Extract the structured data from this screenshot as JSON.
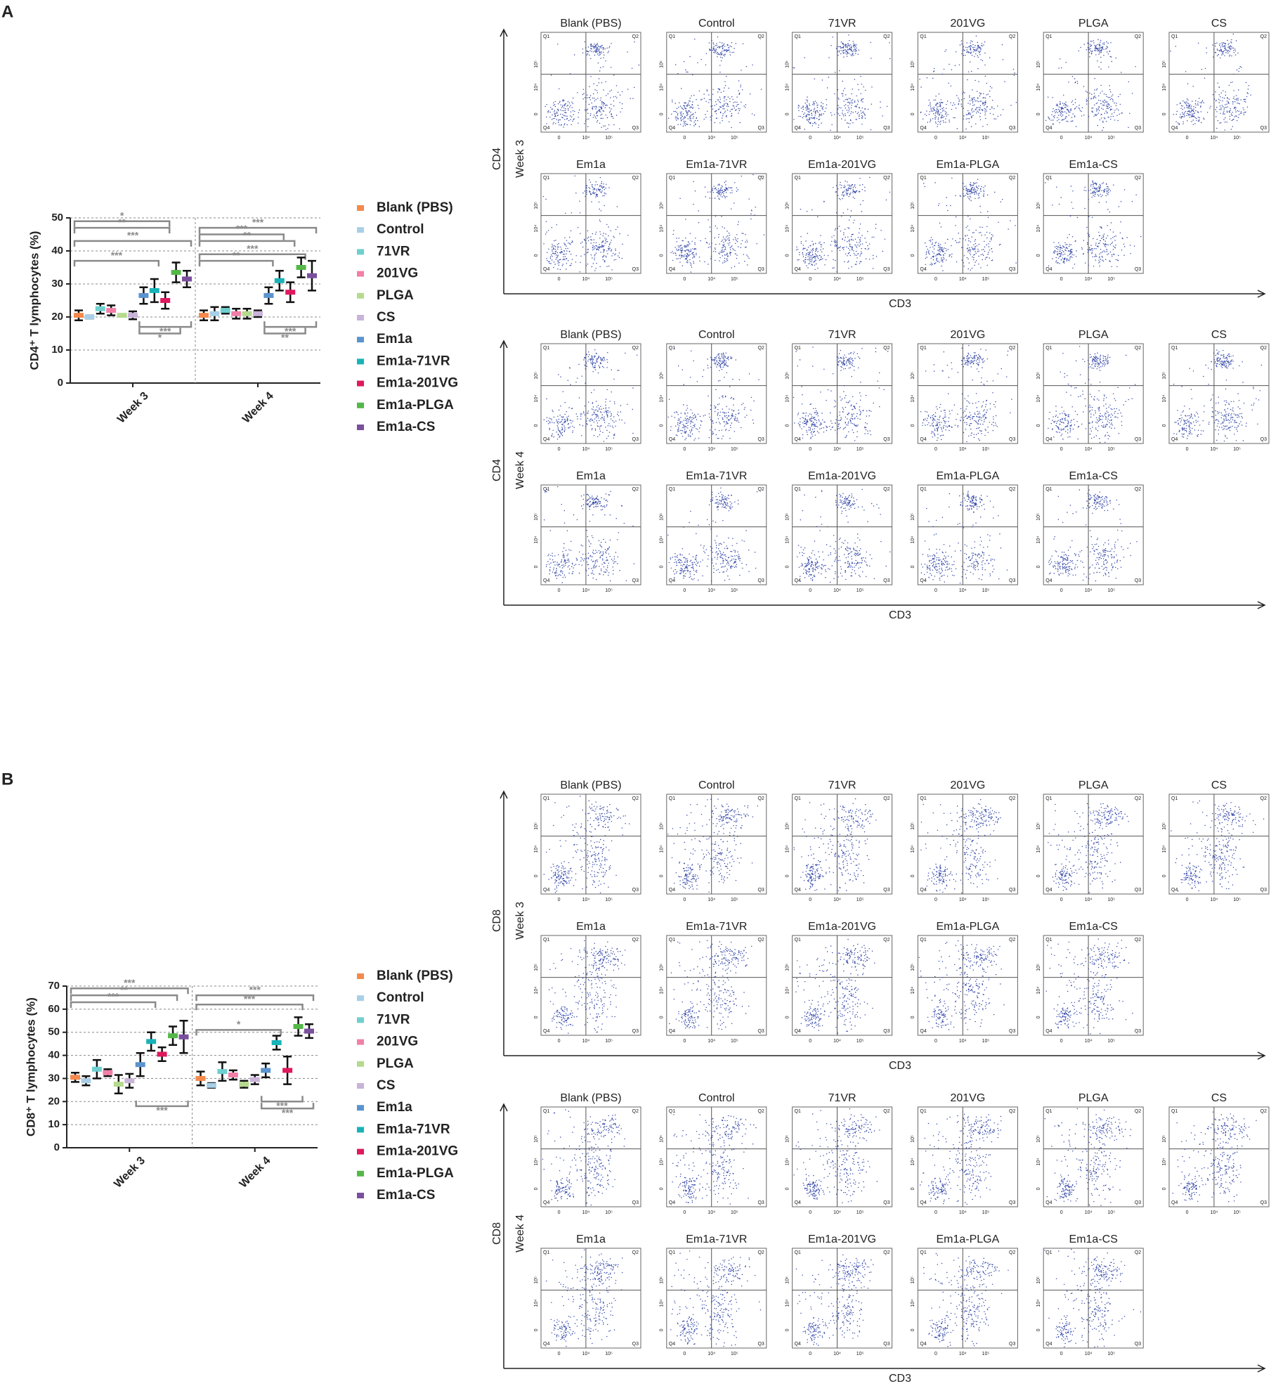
{
  "panel_labels": [
    "A",
    "B"
  ],
  "chart_data": [
    {
      "type": "errorbar",
      "y_label": "CD4⁺ T lymphocytes (%)",
      "categories": [
        "Week 3",
        "Week 4"
      ],
      "ylim": [
        0,
        50
      ],
      "yticks": [
        0,
        10,
        20,
        30,
        40,
        50
      ],
      "grid": true,
      "series": [
        {
          "name": "Blank (PBS)",
          "color": "#f4894b",
          "values": [
            20.5,
            20.5
          ],
          "errors": [
            1.5,
            1.5
          ]
        },
        {
          "name": "Control",
          "color": "#a9cfe8",
          "values": [
            20,
            21
          ],
          "errors": [
            0.5,
            2
          ]
        },
        {
          "name": "71VR",
          "color": "#6fcfcf",
          "values": [
            22.5,
            22
          ],
          "errors": [
            1.5,
            1
          ]
        },
        {
          "name": "201VG",
          "color": "#f27fa8",
          "values": [
            22,
            21
          ],
          "errors": [
            1.5,
            1.5
          ]
        },
        {
          "name": "PLGA",
          "color": "#b5da8e",
          "values": [
            20.5,
            21
          ],
          "errors": [
            0.3,
            1.5
          ]
        },
        {
          "name": "CS",
          "color": "#c9b3d9",
          "values": [
            20.5,
            21
          ],
          "errors": [
            1.2,
            1
          ]
        },
        {
          "name": "Em1a",
          "color": "#5b93cf",
          "values": [
            26.5,
            26.5
          ],
          "errors": [
            2.5,
            2.5
          ]
        },
        {
          "name": "Em1a-71VR",
          "color": "#18b3b8",
          "values": [
            28,
            31
          ],
          "errors": [
            3.5,
            3
          ]
        },
        {
          "name": "Em1a-201VG",
          "color": "#e0185e",
          "values": [
            25,
            27.5
          ],
          "errors": [
            2.5,
            3
          ]
        },
        {
          "name": "Em1a-PLGA",
          "color": "#53b848",
          "values": [
            33.5,
            35
          ],
          "errors": [
            3,
            3
          ]
        },
        {
          "name": "Em1a-CS",
          "color": "#7a4f9e",
          "values": [
            31.5,
            32.5
          ],
          "errors": [
            2.5,
            4.5
          ]
        }
      ],
      "annotations": [
        "*",
        "**",
        "***",
        "***",
        "***",
        "*",
        "***",
        "***",
        "**",
        "***",
        "**",
        "***",
        "**"
      ]
    },
    {
      "type": "errorbar",
      "y_label": "CD8⁺ T lymphocytes (%)",
      "categories": [
        "Week 3",
        "Week 4"
      ],
      "ylim": [
        0,
        70
      ],
      "yticks": [
        0,
        10,
        20,
        30,
        40,
        50,
        60,
        70
      ],
      "grid": true,
      "series": [
        {
          "name": "Blank (PBS)",
          "color": "#f4894b",
          "values": [
            30.5,
            30
          ],
          "errors": [
            2,
            3
          ]
        },
        {
          "name": "Control",
          "color": "#a9cfe8",
          "values": [
            29,
            27
          ],
          "errors": [
            2,
            1
          ]
        },
        {
          "name": "71VR",
          "color": "#6fcfcf",
          "values": [
            34,
            33
          ],
          "errors": [
            4,
            4
          ]
        },
        {
          "name": "201VG",
          "color": "#f27fa8",
          "values": [
            32.5,
            31.5
          ],
          "errors": [
            1.5,
            2
          ]
        },
        {
          "name": "PLGA",
          "color": "#b5da8e",
          "values": [
            27.5,
            27.5
          ],
          "errors": [
            4,
            1.5
          ]
        },
        {
          "name": "CS",
          "color": "#c9b3d9",
          "values": [
            29,
            29.5
          ],
          "errors": [
            3,
            2
          ]
        },
        {
          "name": "Em1a",
          "color": "#5b93cf",
          "values": [
            36,
            33.5
          ],
          "errors": [
            5,
            3
          ]
        },
        {
          "name": "Em1a-71VR",
          "color": "#18b3b8",
          "values": [
            46,
            45.5
          ],
          "errors": [
            4,
            3
          ]
        },
        {
          "name": "Em1a-201VG",
          "color": "#e0185e",
          "values": [
            40.5,
            33.5
          ],
          "errors": [
            3,
            6
          ]
        },
        {
          "name": "Em1a-PLGA",
          "color": "#53b848",
          "values": [
            48.5,
            52.5
          ],
          "errors": [
            4,
            4
          ]
        },
        {
          "name": "Em1a-CS",
          "color": "#7a4f9e",
          "values": [
            48,
            50.5
          ],
          "errors": [
            7,
            3
          ]
        }
      ],
      "annotations": [
        "***",
        "**",
        "***",
        "***",
        "***",
        "***",
        "*",
        "***",
        "***"
      ]
    }
  ],
  "flow_quadrants": [
    "Q1",
    "Q2",
    "Q3",
    "Q4"
  ],
  "flow_ticks": [
    "0",
    "10⁴",
    "10⁵"
  ],
  "flow_blocks": [
    {
      "y_label": "CD4",
      "row_label": "Week 3",
      "x_label": "CD3",
      "samples": [
        "Blank (PBS)",
        "Control",
        "71VR",
        "201VG",
        "PLGA",
        "CS",
        "Em1a",
        "Em1a-71VR",
        "Em1a-201VG",
        "Em1a-PLGA",
        "Em1a-CS"
      ]
    },
    {
      "y_label": "CD4",
      "row_label": "Week 4",
      "x_label": "CD3",
      "samples": [
        "Blank (PBS)",
        "Control",
        "71VR",
        "201VG",
        "PLGA",
        "CS",
        "Em1a",
        "Em1a-71VR",
        "Em1a-201VG",
        "Em1a-PLGA",
        "Em1a-CS"
      ]
    },
    {
      "y_label": "CD8",
      "row_label": "Week 3",
      "x_label": "CD3",
      "samples": [
        "Blank (PBS)",
        "Control",
        "71VR",
        "201VG",
        "PLGA",
        "CS",
        "Em1a",
        "Em1a-71VR",
        "Em1a-201VG",
        "Em1a-PLGA",
        "Em1a-CS"
      ]
    },
    {
      "y_label": "CD8",
      "row_label": "Week 4",
      "x_label": "CD3",
      "samples": [
        "Blank (PBS)",
        "Control",
        "71VR",
        "201VG",
        "PLGA",
        "CS",
        "Em1a",
        "Em1a-71VR",
        "Em1a-201VG",
        "Em1a-PLGA",
        "Em1a-CS"
      ]
    }
  ]
}
